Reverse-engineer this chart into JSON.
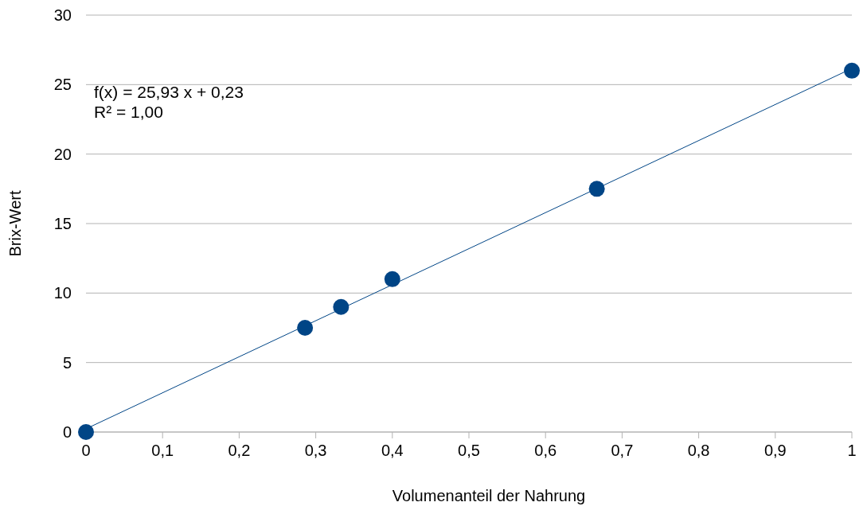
{
  "chart_data": {
    "type": "scatter",
    "xlabel": "Volumenanteil der Nahrung",
    "ylabel": "Brix-Wert",
    "annotations": [
      "f(x) = 25,93 x + 0,23",
      "R² = 1,00"
    ],
    "series": [
      {
        "color": "#004586",
        "x": [
          0,
          0.286,
          0.333,
          0.4,
          0.667,
          1
        ],
        "values": [
          0,
          7.5,
          9.0,
          11.0,
          17.5,
          26.0
        ],
        "marker": "circle"
      },
      {
        "type": "line",
        "color": "#004586",
        "x": [
          0,
          1
        ],
        "values": [
          0.23,
          26.16
        ],
        "marker": "none",
        "line_style": "solid"
      }
    ],
    "xlim": [
      0,
      1
    ],
    "xticks": [
      0,
      {
        "value": 0.1,
        "label": "0,1"
      },
      {
        "value": 0.2,
        "label": "0,2"
      },
      {
        "value": 0.3,
        "label": "0,3"
      },
      {
        "value": 0.4,
        "label": "0,4"
      },
      {
        "value": 0.5,
        "label": "0,5"
      },
      {
        "value": 0.6,
        "label": "0,6"
      },
      {
        "value": 0.7,
        "label": "0,7"
      },
      {
        "value": 0.8,
        "label": "0,8"
      },
      {
        "value": 0.9,
        "label": "0,9"
      },
      1
    ],
    "ylim": [
      0,
      30
    ],
    "yticks": [
      0,
      5,
      10,
      15,
      20,
      25,
      30
    ],
    "grid": "y"
  }
}
